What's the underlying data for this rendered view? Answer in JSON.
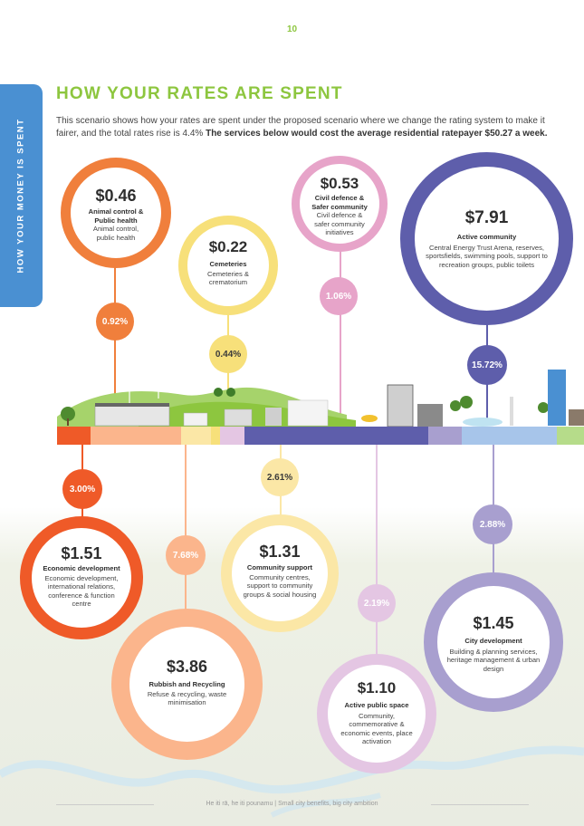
{
  "page": {
    "number": "10"
  },
  "side_tab": {
    "label": "HOW YOUR MONEY IS SPENT"
  },
  "heading": {
    "title": "HOW YOUR RATES ARE SPENT",
    "intro": "This scenario shows how your rates are spent under the proposed scenario where we change the rating system to make it fairer, and the total rates rise is 4.4%",
    "intro_bold": "The services below would cost the average residential ratepayer $50.27 a week."
  },
  "colors": {
    "green": "#8dc63f",
    "blue_tab": "#4a90d2",
    "orange": "#f07f3c",
    "yellow": "#f7e07a",
    "pink": "#e7a4c9",
    "purple": "#5e5eab",
    "red_orange": "#ef5a28",
    "peach": "#fbb58c",
    "light_yellow": "#fbe7a6",
    "lavender": "#e4c6e3",
    "light_purple": "#a89fcf"
  },
  "services": {
    "animal": {
      "amount": "$0.46",
      "category": "Animal control & Public health",
      "description": "Animal control, public health",
      "percent": "0.92%"
    },
    "cemeteries": {
      "amount": "$0.22",
      "category": "Cemeteries",
      "description": "Cemeteries & crematorium",
      "percent": "0.44%"
    },
    "civil": {
      "amount": "$0.53",
      "category": "Civil defence & Safer community",
      "description": "Civil defence & safer community initiatives",
      "percent": "1.06%"
    },
    "active_community": {
      "amount": "$7.91",
      "category": "Active community",
      "description": "Central Energy Trust Arena, reserves, sportsfields, swimming pools, support to recreation groups, public toilets",
      "percent": "15.72%"
    },
    "economic": {
      "amount": "$1.51",
      "category": "Economic development",
      "description": "Economic development, international relations, conference & function centre",
      "percent": "3.00%"
    },
    "rubbish": {
      "amount": "$3.86",
      "category": "Rubbish and Recycling",
      "description": "Refuse & recycling, waste minimisation",
      "percent": "7.68%"
    },
    "community_support": {
      "amount": "$1.31",
      "category": "Community support",
      "description": "Community centres, support to community groups & social housing",
      "percent": "2.61%"
    },
    "public_space": {
      "amount": "$1.10",
      "category": "Active public space",
      "description": "Community, commemorative & economic events, place activation",
      "percent": "2.19%"
    },
    "city_dev": {
      "amount": "$1.45",
      "category": "City development",
      "description": "Building & planning services, heritage management & urban design",
      "percent": "2.88%"
    }
  },
  "footer": {
    "tagline": "He iti rā, he iti pounamu  |  Small city benefits, big city ambition"
  }
}
